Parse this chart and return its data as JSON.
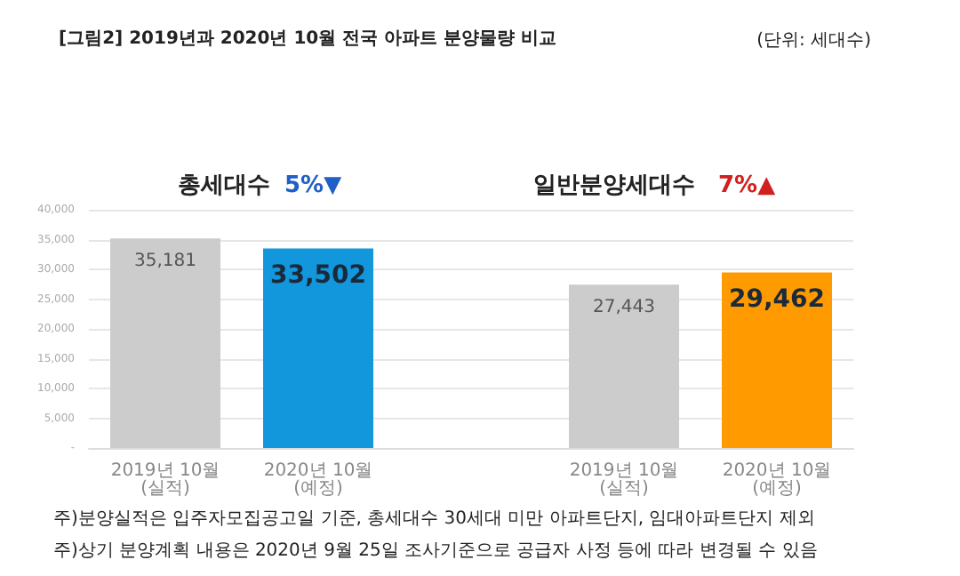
{
  "chart_data": {
    "type": "bar",
    "title": "[그림2] 2019년과 2020년 10월 전국 아파트 분양물량 비교",
    "categories": [
      "2019년 10월 (실적)",
      "2020년 10월 (예정)",
      null,
      "2019년 10월 (실적)",
      "2020년 10월 (예정)"
    ],
    "values": [
      35181,
      33502,
      null,
      27443,
      29462
    ],
    "colors": [
      "#cccccc",
      "#1296dc",
      null,
      "#cccccc",
      "#ff9a00"
    ],
    "value_labels": [
      "35,181",
      "33,502",
      null,
      "27,443",
      "29,462"
    ],
    "ylim": [
      0,
      40000
    ],
    "yticks": [
      {
        "value": 0,
        "label": "-"
      },
      {
        "value": 5000,
        "label": "5,000"
      },
      {
        "value": 10000,
        "label": "10,000"
      },
      {
        "value": 15000,
        "label": "15,000"
      },
      {
        "value": 20000,
        "label": "20,000"
      },
      {
        "value": 25000,
        "label": "25,000"
      },
      {
        "value": 30000,
        "label": "30,000"
      },
      {
        "value": 35000,
        "label": "35,000"
      },
      {
        "value": 40000,
        "label": "40,000"
      }
    ],
    "grid": "y",
    "annotations": [
      "(단위: 세대수)",
      "총세대수",
      "5%▼",
      "일반분양세대수",
      "7%▲",
      "주)분양실적은 입주자모집공고일 기준, 총세대수 30세대 미만 아파트단지, 임대아파트단지 제외",
      "주)상기 분양계획 내용은 2020년 9월 25일 조사기준으로 공급자 사정 등에 따라 변경될 수 있음"
    ]
  }
}
